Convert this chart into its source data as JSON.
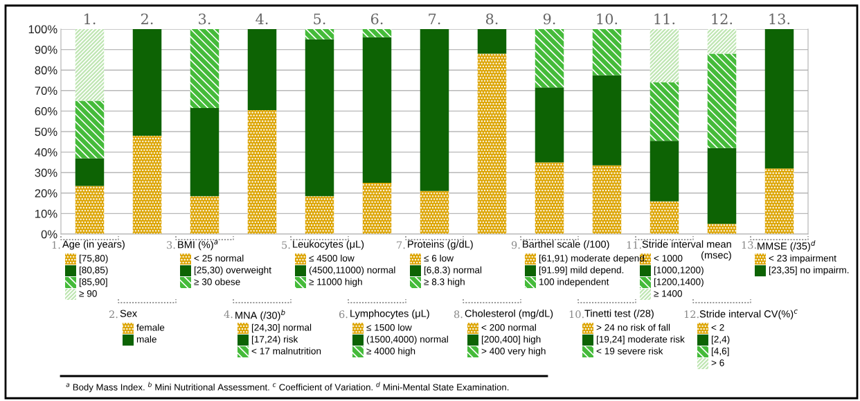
{
  "chart_data": {
    "type": "bar",
    "stacked": true,
    "categories": [
      "1.",
      "2.",
      "3.",
      "4.",
      "5.",
      "6.",
      "7.",
      "8.",
      "9.",
      "10.",
      "11.",
      "12.",
      "13."
    ],
    "series": [
      {
        "color": "#dca400",
        "values": [
          23.5,
          48,
          18.5,
          60.5,
          18.5,
          25,
          21,
          88,
          35,
          33.5,
          16,
          5,
          32
        ]
      },
      {
        "color": "#0d6304",
        "values": [
          13.5,
          52,
          43,
          39.5,
          76.5,
          71,
          79,
          12,
          36.5,
          44,
          29.5,
          37,
          68
        ]
      },
      {
        "color": "#45bb3a",
        "values": [
          28,
          null,
          38.5,
          0,
          5,
          4,
          0,
          0,
          28.5,
          22.5,
          28.5,
          46,
          null
        ]
      },
      {
        "color": "#bfe6b3",
        "values": [
          35,
          null,
          null,
          null,
          null,
          null,
          null,
          null,
          null,
          null,
          26,
          12,
          null
        ]
      }
    ],
    "ylim": [
      0,
      100
    ],
    "yticks": [
      {
        "value": 0,
        "label": "0%"
      },
      {
        "value": 10,
        "label": "10%"
      },
      {
        "value": 20,
        "label": "20%"
      },
      {
        "value": 30,
        "label": "30%"
      },
      {
        "value": 40,
        "label": "40%"
      },
      {
        "value": 50,
        "label": "50%"
      },
      {
        "value": 60,
        "label": "60%"
      },
      {
        "value": 70,
        "label": "70%"
      },
      {
        "value": 80,
        "label": "80%"
      },
      {
        "value": 90,
        "label": "90%"
      },
      {
        "value": 100,
        "label": "100%"
      }
    ],
    "grid": "y",
    "annotations": [
      "Age (in years)",
      "[75,80)",
      "[80,85)",
      "[85,90]",
      "≥ 90",
      "Sex",
      "female",
      "male",
      "BMI (%)$^{a}$",
      "< 25 normal",
      "[25,30) overweight",
      "≥ 30 obese",
      "MNA (/30)$^{b}$",
      "[24,30] normal",
      "[17,24) risk",
      "< 17 malnutrition",
      "Leukocytes (μL)",
      "≤ 4500 low",
      "(4500,11000) normal",
      "≥ 11000 high",
      "Lymphocytes (μL)",
      "≤ 1500 low",
      "(1500,4000) normal",
      "≥ 4000 high",
      "Proteins (g/dL)",
      "≤ 6 low",
      "[6,8.3) normal",
      "≥ 8.3 high",
      "Cholesterol (mg/dL)",
      "< 200 normal",
      "[200,400] high",
      "> 400 very high",
      "Barthel scale (/100)",
      "[61,91) moderate depend.",
      "[91.99] mild depend.",
      "100 independent",
      "Tinetti test (/28)",
      "> 24 no risk of fall",
      "[19,24] moderate risk",
      "< 19 severe risk",
      "Stride interval mean\n(msec)",
      "< 1000",
      "[1000,1200)",
      "[1200,1400)",
      "≥ 1400",
      "Stride interval CV(%)$^{c}$",
      "< 2",
      "[2,4)",
      "[4,6]",
      "> 6",
      "MMSE (/35)$^{d}$",
      "< 23 impairment",
      "[23,35] no impairm.",
      "$^{a}$ Body Mass Index. $^{b}$ Mini Nutritional Assessment. $^{c}$ Coefficient of Variation. $^{d}$ Mini-Mental State Examination."
    ]
  }
}
